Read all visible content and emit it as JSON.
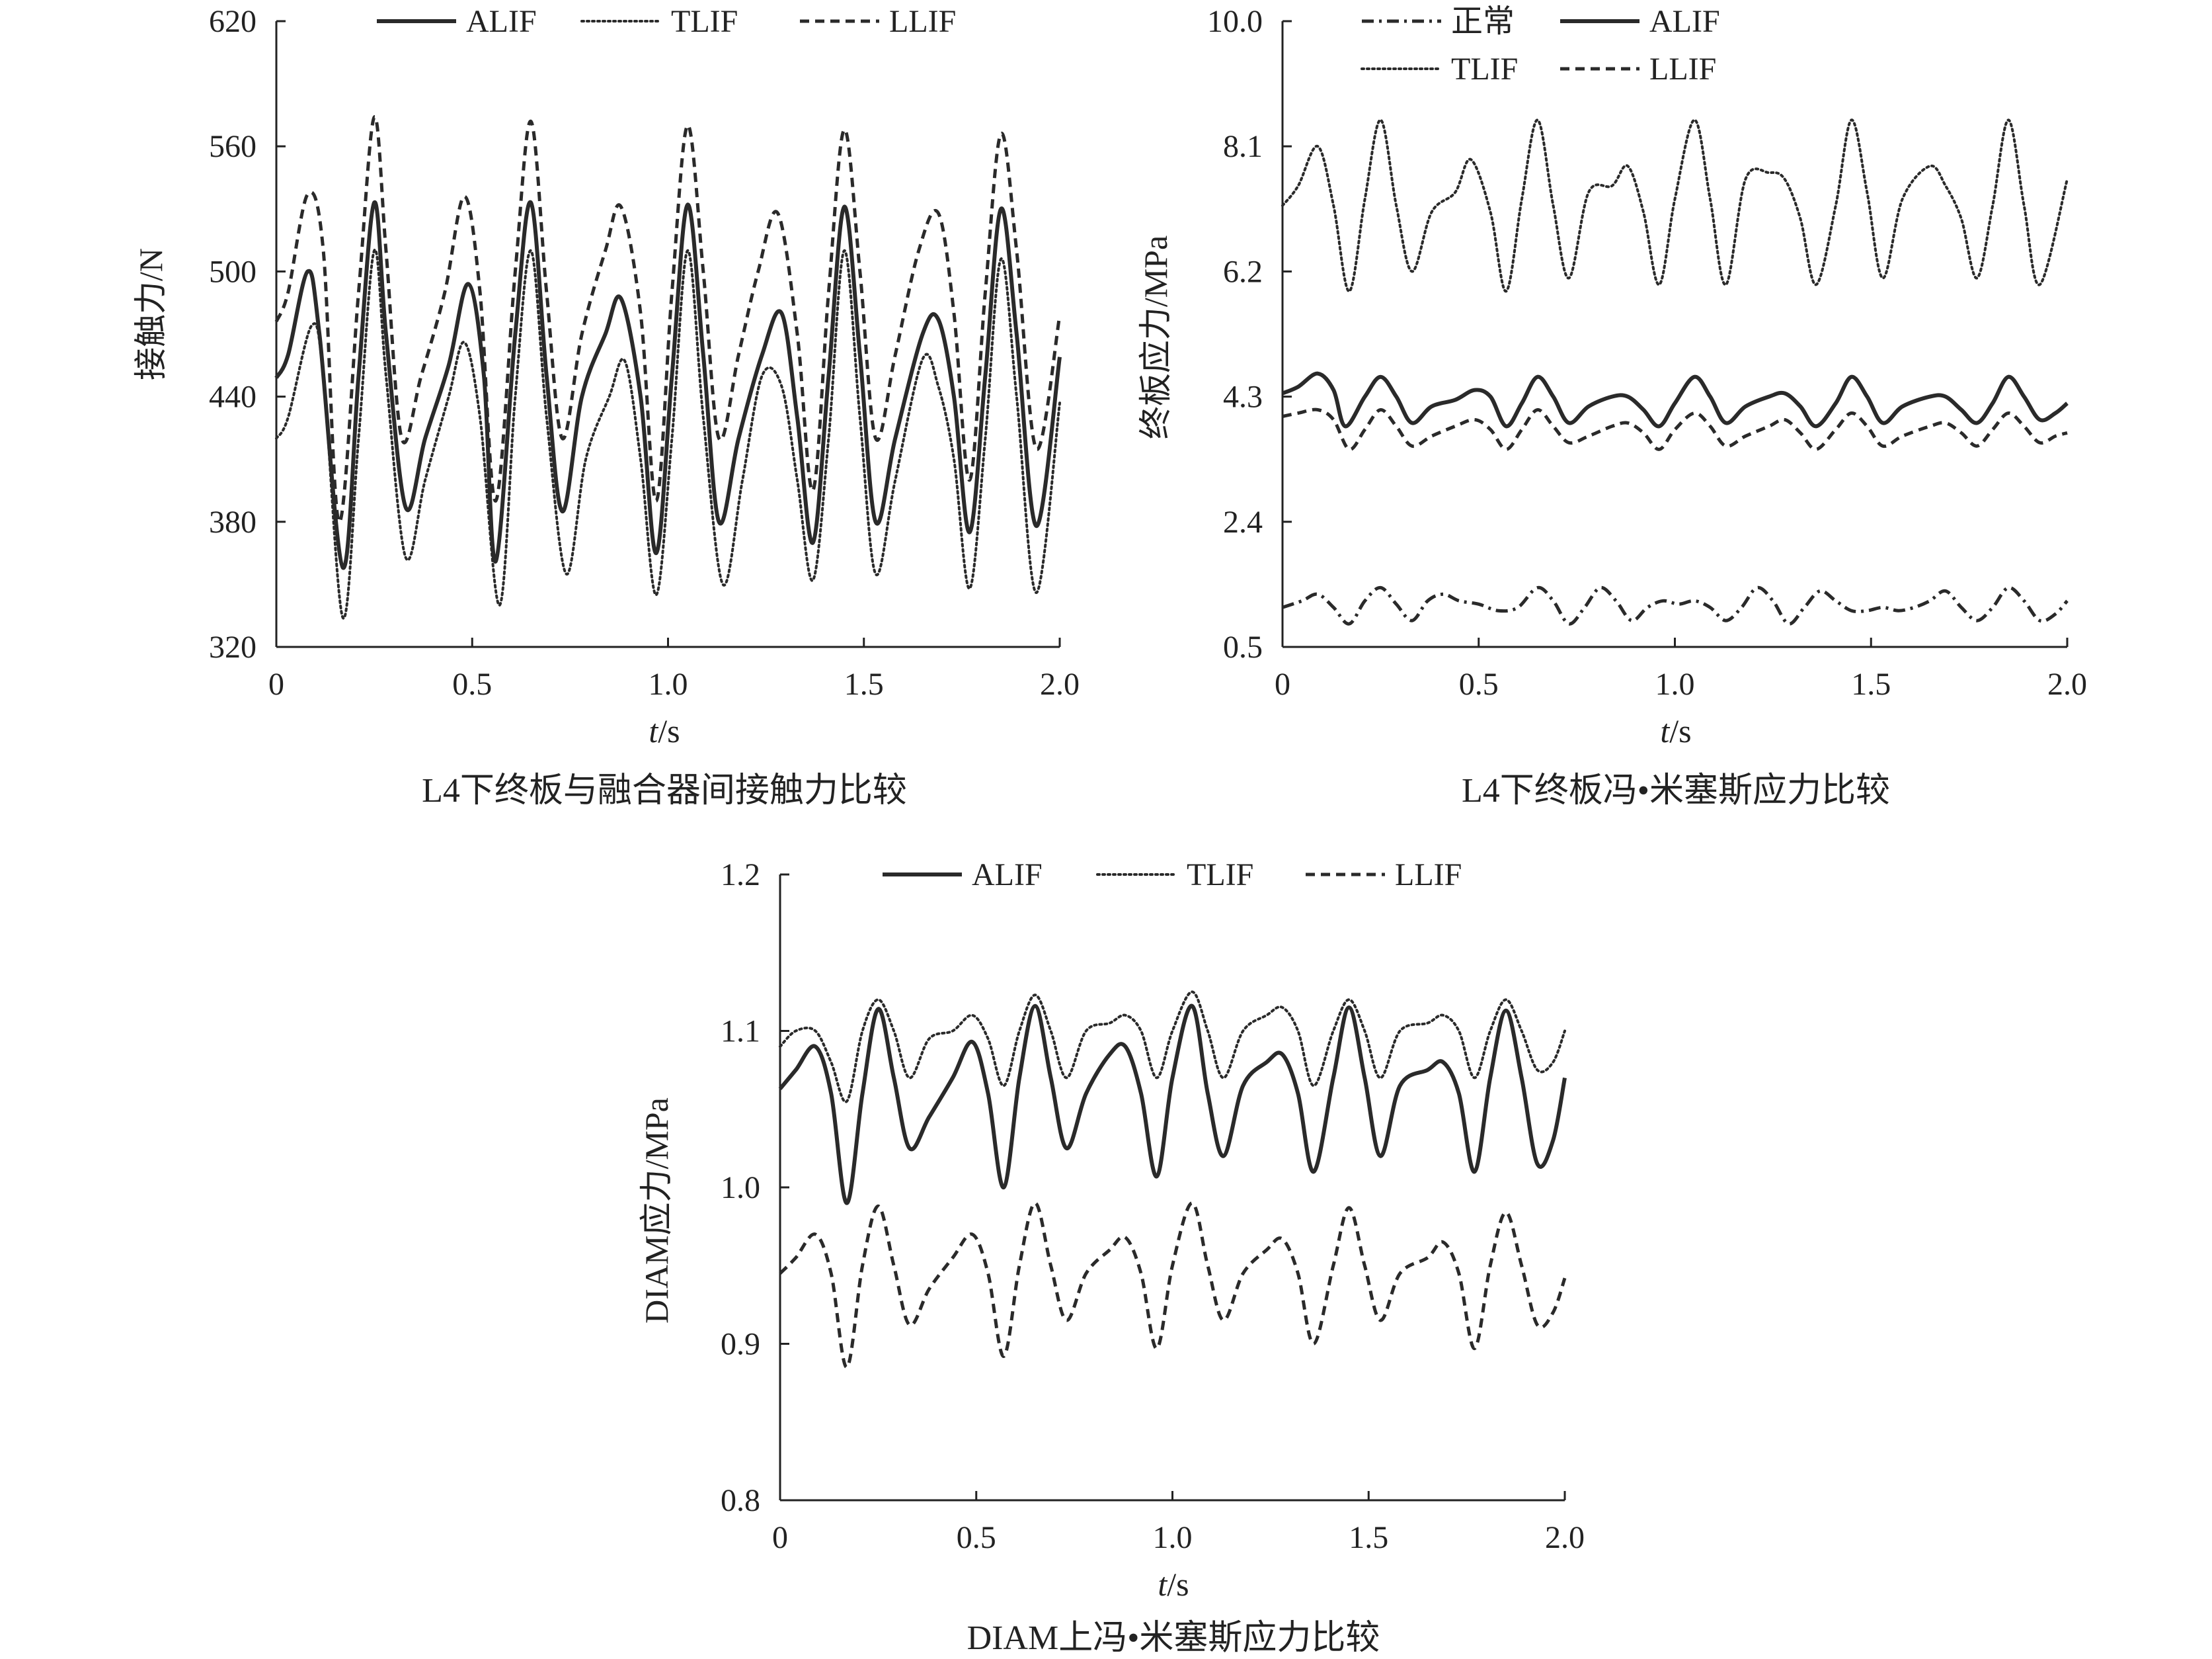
{
  "figure": {
    "panels": [
      {
        "caption": "L4下终板与融合器间接触力比较",
        "ylabel": "接触力/N",
        "xlabel_var": "t",
        "xlabel_unit": "/s"
      },
      {
        "caption": "L4下终板冯•米塞斯应力比较",
        "ylabel": "终板应力/MPa",
        "xlabel_var": "t",
        "xlabel_unit": "/s"
      },
      {
        "caption": "DIAM上冯•米塞斯应力比较",
        "ylabel": "DIAM应力/MPa",
        "xlabel_var": "t",
        "xlabel_unit": "/s"
      }
    ]
  },
  "chart_data": [
    {
      "type": "line",
      "title": "L4下终板与融合器间接触力比较",
      "xlabel": "t/s",
      "ylabel": "接触力/N",
      "xlim": [
        0,
        2.0
      ],
      "ylim": [
        320,
        620
      ],
      "xticks": [
        "0",
        "0.5",
        "1.0",
        "1.5",
        "2.0"
      ],
      "yticks": [
        "320",
        "380",
        "440",
        "500",
        "560",
        "620"
      ],
      "legend": "top",
      "series": [
        {
          "name": "ALIF",
          "style": "solid",
          "x": [
            0,
            0.03,
            0.08,
            0.11,
            0.17,
            0.21,
            0.25,
            0.28,
            0.33,
            0.38,
            0.44,
            0.49,
            0.53,
            0.56,
            0.61,
            0.65,
            0.69,
            0.73,
            0.78,
            0.84,
            0.88,
            0.93,
            0.97,
            1.01,
            1.05,
            1.09,
            1.13,
            1.18,
            1.24,
            1.29,
            1.33,
            1.37,
            1.41,
            1.45,
            1.49,
            1.53,
            1.58,
            1.65,
            1.69,
            1.73,
            1.77,
            1.81,
            1.85,
            1.89,
            1.94,
            2.0
          ],
          "y": [
            449,
            460,
            500,
            470,
            358,
            450,
            533,
            470,
            387,
            420,
            455,
            494,
            450,
            361,
            470,
            533,
            450,
            385,
            440,
            470,
            487,
            440,
            365,
            450,
            532,
            460,
            380,
            420,
            460,
            480,
            430,
            370,
            450,
            531,
            460,
            380,
            420,
            470,
            477,
            440,
            375,
            450,
            530,
            470,
            378,
            459
          ]
        },
        {
          "name": "TLIF",
          "style": "dotted",
          "x": [
            0,
            0.03,
            0.09,
            0.12,
            0.17,
            0.21,
            0.25,
            0.28,
            0.33,
            0.38,
            0.44,
            0.48,
            0.52,
            0.57,
            0.61,
            0.65,
            0.69,
            0.74,
            0.79,
            0.85,
            0.89,
            0.93,
            0.97,
            1.01,
            1.05,
            1.09,
            1.14,
            1.19,
            1.24,
            1.29,
            1.33,
            1.37,
            1.41,
            1.45,
            1.49,
            1.53,
            1.58,
            1.65,
            1.69,
            1.73,
            1.77,
            1.81,
            1.85,
            1.89,
            1.94,
            2.0
          ],
          "y": [
            420,
            430,
            474,
            450,
            334,
            420,
            510,
            450,
            363,
            400,
            440,
            466,
            430,
            340,
            440,
            510,
            430,
            355,
            410,
            440,
            457,
            410,
            345,
            420,
            510,
            430,
            350,
            400,
            450,
            445,
            400,
            352,
            420,
            510,
            430,
            355,
            400,
            458,
            445,
            410,
            348,
            420,
            506,
            440,
            346,
            437
          ]
        },
        {
          "name": "LLIF",
          "style": "dashed",
          "x": [
            0,
            0.03,
            0.08,
            0.12,
            0.16,
            0.21,
            0.25,
            0.28,
            0.32,
            0.37,
            0.43,
            0.48,
            0.52,
            0.56,
            0.61,
            0.65,
            0.69,
            0.73,
            0.78,
            0.84,
            0.88,
            0.93,
            0.97,
            1.01,
            1.05,
            1.09,
            1.13,
            1.18,
            1.23,
            1.28,
            1.33,
            1.37,
            1.41,
            1.45,
            1.49,
            1.53,
            1.58,
            1.64,
            1.69,
            1.73,
            1.77,
            1.81,
            1.85,
            1.89,
            1.94,
            2.0
          ],
          "y": [
            476,
            490,
            537,
            510,
            380,
            490,
            574,
            510,
            420,
            450,
            490,
            536,
            490,
            390,
            500,
            572,
            490,
            420,
            470,
            510,
            531,
            480,
            390,
            490,
            570,
            500,
            420,
            460,
            500,
            528,
            470,
            395,
            490,
            568,
            500,
            420,
            460,
            510,
            528,
            480,
            400,
            490,
            566,
            510,
            415,
            479
          ]
        }
      ]
    },
    {
      "type": "line",
      "title": "L4下终板冯•米塞斯应力比较",
      "xlabel": "t/s",
      "ylabel": "终板应力/MPa",
      "xlim": [
        0,
        2.0
      ],
      "ylim": [
        0.5,
        10.0
      ],
      "xticks": [
        "0",
        "0.5",
        "1.0",
        "1.5",
        "2.0"
      ],
      "yticks": [
        "0.5",
        "2.4",
        "4.3",
        "6.2",
        "8.1",
        "10.0"
      ],
      "legend": "top",
      "series": [
        {
          "name": "正常",
          "style": "dashdot",
          "x": [
            0,
            0.05,
            0.09,
            0.13,
            0.17,
            0.21,
            0.25,
            0.29,
            0.33,
            0.37,
            0.41,
            0.45,
            0.5,
            0.55,
            0.6,
            0.65,
            0.69,
            0.73,
            0.77,
            0.81,
            0.85,
            0.89,
            0.93,
            0.97,
            1.01,
            1.05,
            1.09,
            1.13,
            1.17,
            1.21,
            1.25,
            1.29,
            1.33,
            1.37,
            1.41,
            1.45,
            1.49,
            1.53,
            1.57,
            1.61,
            1.65,
            1.69,
            1.73,
            1.77,
            1.81,
            1.85,
            1.89,
            1.93,
            1.97,
            2.0
          ],
          "y": [
            1.1,
            1.2,
            1.3,
            1.1,
            0.85,
            1.2,
            1.4,
            1.15,
            0.9,
            1.2,
            1.3,
            1.2,
            1.15,
            1.05,
            1.1,
            1.4,
            1.2,
            0.85,
            1.1,
            1.4,
            1.2,
            0.9,
            1.1,
            1.2,
            1.15,
            1.2,
            1.1,
            0.9,
            1.1,
            1.4,
            1.2,
            0.85,
            1.1,
            1.35,
            1.2,
            1.05,
            1.05,
            1.1,
            1.05,
            1.1,
            1.2,
            1.35,
            1.1,
            0.9,
            1.1,
            1.4,
            1.2,
            0.9,
            1.0,
            1.2
          ]
        },
        {
          "name": "ALIF",
          "style": "solid",
          "x": [
            0,
            0.04,
            0.09,
            0.13,
            0.16,
            0.21,
            0.25,
            0.29,
            0.33,
            0.38,
            0.44,
            0.49,
            0.53,
            0.57,
            0.61,
            0.65,
            0.69,
            0.73,
            0.78,
            0.84,
            0.88,
            0.92,
            0.96,
            1.0,
            1.05,
            1.09,
            1.13,
            1.18,
            1.24,
            1.28,
            1.32,
            1.36,
            1.41,
            1.45,
            1.49,
            1.53,
            1.58,
            1.65,
            1.69,
            1.73,
            1.77,
            1.81,
            1.85,
            1.89,
            1.93,
            1.97,
            2.0
          ],
          "y": [
            4.35,
            4.45,
            4.65,
            4.4,
            3.85,
            4.3,
            4.6,
            4.3,
            3.9,
            4.15,
            4.25,
            4.4,
            4.3,
            3.85,
            4.2,
            4.6,
            4.3,
            3.9,
            4.15,
            4.3,
            4.3,
            4.1,
            3.85,
            4.2,
            4.6,
            4.3,
            3.9,
            4.15,
            4.3,
            4.35,
            4.15,
            3.85,
            4.2,
            4.6,
            4.3,
            3.9,
            4.15,
            4.3,
            4.3,
            4.1,
            3.9,
            4.2,
            4.6,
            4.3,
            3.95,
            4.05,
            4.2
          ]
        },
        {
          "name": "TLIF",
          "style": "dotted",
          "x": [
            0,
            0.04,
            0.09,
            0.13,
            0.17,
            0.21,
            0.25,
            0.29,
            0.33,
            0.38,
            0.44,
            0.48,
            0.53,
            0.57,
            0.61,
            0.65,
            0.69,
            0.73,
            0.78,
            0.84,
            0.88,
            0.92,
            0.96,
            1.0,
            1.05,
            1.09,
            1.13,
            1.18,
            1.24,
            1.28,
            1.32,
            1.36,
            1.41,
            1.45,
            1.49,
            1.53,
            1.58,
            1.65,
            1.69,
            1.73,
            1.77,
            1.81,
            1.85,
            1.89,
            1.93,
            2.0
          ],
          "y": [
            7.2,
            7.5,
            8.1,
            7.2,
            5.9,
            7.3,
            8.5,
            7.2,
            6.2,
            7.1,
            7.4,
            7.9,
            7.1,
            5.9,
            7.3,
            8.5,
            7.2,
            6.1,
            7.4,
            7.5,
            7.8,
            7.1,
            6.0,
            7.3,
            8.5,
            7.3,
            6.0,
            7.6,
            7.7,
            7.6,
            7.0,
            6.0,
            7.2,
            8.5,
            7.4,
            6.1,
            7.3,
            7.8,
            7.5,
            7.0,
            6.1,
            7.2,
            8.5,
            7.2,
            6.0,
            7.6
          ]
        },
        {
          "name": "LLIF",
          "style": "dashed",
          "x": [
            0,
            0.04,
            0.09,
            0.13,
            0.17,
            0.21,
            0.25,
            0.29,
            0.33,
            0.38,
            0.44,
            0.49,
            0.53,
            0.57,
            0.61,
            0.65,
            0.69,
            0.73,
            0.78,
            0.84,
            0.88,
            0.92,
            0.96,
            1.0,
            1.05,
            1.09,
            1.13,
            1.18,
            1.24,
            1.28,
            1.32,
            1.36,
            1.41,
            1.45,
            1.49,
            1.53,
            1.58,
            1.65,
            1.69,
            1.73,
            1.77,
            1.81,
            1.85,
            1.89,
            1.93,
            1.97,
            2.0
          ],
          "y": [
            4.0,
            4.05,
            4.1,
            3.95,
            3.5,
            3.8,
            4.1,
            3.85,
            3.55,
            3.7,
            3.85,
            3.95,
            3.8,
            3.5,
            3.8,
            4.1,
            3.85,
            3.6,
            3.7,
            3.85,
            3.9,
            3.75,
            3.5,
            3.8,
            4.05,
            3.85,
            3.55,
            3.7,
            3.85,
            3.95,
            3.75,
            3.5,
            3.8,
            4.05,
            3.85,
            3.55,
            3.7,
            3.85,
            3.9,
            3.75,
            3.55,
            3.8,
            4.05,
            3.85,
            3.6,
            3.7,
            3.75
          ]
        }
      ]
    },
    {
      "type": "line",
      "title": "DIAM上冯•米塞斯应力比较",
      "xlabel": "t/s",
      "ylabel": "DIAM应力/MPa",
      "xlim": [
        0,
        2.0
      ],
      "ylim": [
        0.8,
        1.2
      ],
      "xticks": [
        "0",
        "0.5",
        "1.0",
        "1.5",
        "2.0"
      ],
      "yticks": [
        "0.8",
        "0.9",
        "1.0",
        "1.1",
        "1.2"
      ],
      "legend": "top",
      "series": [
        {
          "name": "ALIF",
          "style": "solid",
          "x": [
            0,
            0.04,
            0.09,
            0.13,
            0.17,
            0.21,
            0.25,
            0.29,
            0.33,
            0.38,
            0.44,
            0.49,
            0.53,
            0.57,
            0.61,
            0.65,
            0.69,
            0.73,
            0.78,
            0.84,
            0.88,
            0.92,
            0.96,
            1.0,
            1.05,
            1.09,
            1.13,
            1.18,
            1.24,
            1.28,
            1.32,
            1.36,
            1.41,
            1.45,
            1.49,
            1.53,
            1.58,
            1.65,
            1.69,
            1.73,
            1.77,
            1.81,
            1.85,
            1.89,
            1.93,
            1.97,
            2.0
          ],
          "y": [
            1.063,
            1.075,
            1.09,
            1.06,
            0.99,
            1.06,
            1.114,
            1.07,
            1.025,
            1.045,
            1.07,
            1.093,
            1.06,
            1.0,
            1.07,
            1.116,
            1.07,
            1.025,
            1.06,
            1.085,
            1.09,
            1.06,
            1.007,
            1.07,
            1.116,
            1.06,
            1.02,
            1.065,
            1.08,
            1.085,
            1.06,
            1.01,
            1.07,
            1.115,
            1.07,
            1.02,
            1.065,
            1.075,
            1.08,
            1.06,
            1.01,
            1.07,
            1.113,
            1.07,
            1.015,
            1.03,
            1.07
          ]
        },
        {
          "name": "TLIF",
          "style": "dotted",
          "x": [
            0,
            0.04,
            0.09,
            0.13,
            0.17,
            0.21,
            0.25,
            0.29,
            0.33,
            0.38,
            0.44,
            0.49,
            0.53,
            0.57,
            0.61,
            0.65,
            0.69,
            0.73,
            0.78,
            0.84,
            0.88,
            0.92,
            0.96,
            1.0,
            1.05,
            1.09,
            1.13,
            1.18,
            1.24,
            1.28,
            1.32,
            1.36,
            1.41,
            1.45,
            1.49,
            1.53,
            1.58,
            1.65,
            1.69,
            1.73,
            1.77,
            1.81,
            1.85,
            1.89,
            1.93,
            1.97,
            2.0
          ],
          "y": [
            1.09,
            1.1,
            1.1,
            1.08,
            1.055,
            1.1,
            1.12,
            1.1,
            1.07,
            1.095,
            1.1,
            1.11,
            1.095,
            1.065,
            1.1,
            1.123,
            1.1,
            1.07,
            1.1,
            1.105,
            1.11,
            1.1,
            1.07,
            1.1,
            1.125,
            1.1,
            1.07,
            1.1,
            1.11,
            1.115,
            1.1,
            1.065,
            1.1,
            1.12,
            1.1,
            1.07,
            1.1,
            1.105,
            1.11,
            1.1,
            1.07,
            1.1,
            1.12,
            1.1,
            1.075,
            1.08,
            1.1
          ]
        },
        {
          "name": "LLIF",
          "style": "dashed",
          "x": [
            0,
            0.04,
            0.09,
            0.13,
            0.17,
            0.21,
            0.25,
            0.29,
            0.33,
            0.38,
            0.44,
            0.49,
            0.53,
            0.57,
            0.61,
            0.65,
            0.69,
            0.73,
            0.78,
            0.84,
            0.88,
            0.92,
            0.96,
            1.0,
            1.05,
            1.09,
            1.13,
            1.18,
            1.24,
            1.28,
            1.32,
            1.36,
            1.41,
            1.45,
            1.49,
            1.53,
            1.58,
            1.65,
            1.69,
            1.73,
            1.77,
            1.81,
            1.85,
            1.89,
            1.93,
            1.97,
            2.0
          ],
          "y": [
            0.945,
            0.955,
            0.97,
            0.945,
            0.885,
            0.95,
            0.988,
            0.95,
            0.912,
            0.935,
            0.955,
            0.97,
            0.945,
            0.892,
            0.95,
            0.99,
            0.95,
            0.915,
            0.945,
            0.96,
            0.968,
            0.945,
            0.897,
            0.95,
            0.99,
            0.95,
            0.915,
            0.945,
            0.96,
            0.967,
            0.945,
            0.9,
            0.95,
            0.987,
            0.95,
            0.915,
            0.945,
            0.955,
            0.965,
            0.945,
            0.897,
            0.95,
            0.984,
            0.95,
            0.912,
            0.92,
            0.942
          ]
        }
      ]
    }
  ]
}
